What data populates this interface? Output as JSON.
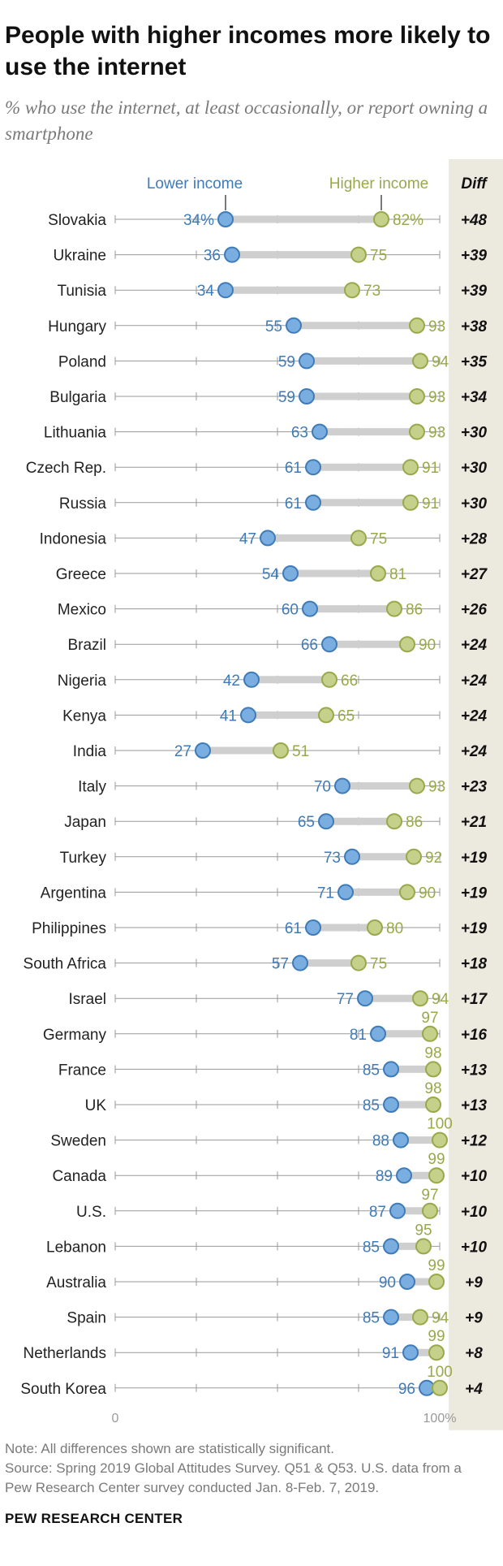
{
  "title": "People with higher incomes more likely to use the internet",
  "subtitle": "% who use the internet, at least occasionally, or report owning a smartphone",
  "note": "Note: All differences shown are statistically significant.",
  "source": "Source: Spring 2019 Global Attitudes Survey. Q51 & Q53. U.S. data from a Pew Research Center survey conducted Jan. 8-Feb. 7, 2019.",
  "org": "PEW RESEARCH CENTER",
  "colors": {
    "lower": "#3e7bb8",
    "lower_fill": "#7aaee0",
    "higher": "#9aa84a",
    "higher_fill": "#c5d08a",
    "connector": "#cfcfcf",
    "axis": "#9a9a9a",
    "diff_bg": "#ece9df"
  },
  "chart_data": {
    "type": "dot",
    "legend": {
      "lower": "Lower income",
      "higher": "Higher income",
      "diff": "Diff"
    },
    "xlim": [
      0,
      100
    ],
    "axis_labels": [
      "0",
      "100%"
    ],
    "series": [
      {
        "name": "Lower income",
        "key": "lower"
      },
      {
        "name": "Higher income",
        "key": "higher"
      }
    ],
    "rows": [
      {
        "country": "Slovakia",
        "lower": 34,
        "higher": 82,
        "lower_label": "34%",
        "higher_label": "82%",
        "diff": "+48"
      },
      {
        "country": "Ukraine",
        "lower": 36,
        "higher": 75,
        "lower_label": "36",
        "higher_label": "75",
        "diff": "+39"
      },
      {
        "country": "Tunisia",
        "lower": 34,
        "higher": 73,
        "lower_label": "34",
        "higher_label": "73",
        "diff": "+39"
      },
      {
        "country": "Hungary",
        "lower": 55,
        "higher": 93,
        "lower_label": "55",
        "higher_label": "93",
        "diff": "+38"
      },
      {
        "country": "Poland",
        "lower": 59,
        "higher": 94,
        "lower_label": "59",
        "higher_label": "94",
        "diff": "+35"
      },
      {
        "country": "Bulgaria",
        "lower": 59,
        "higher": 93,
        "lower_label": "59",
        "higher_label": "93",
        "diff": "+34"
      },
      {
        "country": "Lithuania",
        "lower": 63,
        "higher": 93,
        "lower_label": "63",
        "higher_label": "93",
        "diff": "+30"
      },
      {
        "country": "Czech Rep.",
        "lower": 61,
        "higher": 91,
        "lower_label": "61",
        "higher_label": "91",
        "diff": "+30"
      },
      {
        "country": "Russia",
        "lower": 61,
        "higher": 91,
        "lower_label": "61",
        "higher_label": "91",
        "diff": "+30"
      },
      {
        "country": "Indonesia",
        "lower": 47,
        "higher": 75,
        "lower_label": "47",
        "higher_label": "75",
        "diff": "+28"
      },
      {
        "country": "Greece",
        "lower": 54,
        "higher": 81,
        "lower_label": "54",
        "higher_label": "81",
        "diff": "+27"
      },
      {
        "country": "Mexico",
        "lower": 60,
        "higher": 86,
        "lower_label": "60",
        "higher_label": "86",
        "diff": "+26"
      },
      {
        "country": "Brazil",
        "lower": 66,
        "higher": 90,
        "lower_label": "66",
        "higher_label": "90",
        "diff": "+24"
      },
      {
        "country": "Nigeria",
        "lower": 42,
        "higher": 66,
        "lower_label": "42",
        "higher_label": "66",
        "diff": "+24"
      },
      {
        "country": "Kenya",
        "lower": 41,
        "higher": 65,
        "lower_label": "41",
        "higher_label": "65",
        "diff": "+24"
      },
      {
        "country": "India",
        "lower": 27,
        "higher": 51,
        "lower_label": "27",
        "higher_label": "51",
        "diff": "+24"
      },
      {
        "country": "Italy",
        "lower": 70,
        "higher": 93,
        "lower_label": "70",
        "higher_label": "93",
        "diff": "+23"
      },
      {
        "country": "Japan",
        "lower": 65,
        "higher": 86,
        "lower_label": "65",
        "higher_label": "86",
        "diff": "+21"
      },
      {
        "country": "Turkey",
        "lower": 73,
        "higher": 92,
        "lower_label": "73",
        "higher_label": "92",
        "diff": "+19"
      },
      {
        "country": "Argentina",
        "lower": 71,
        "higher": 90,
        "lower_label": "71",
        "higher_label": "90",
        "diff": "+19"
      },
      {
        "country": "Philippines",
        "lower": 61,
        "higher": 80,
        "lower_label": "61",
        "higher_label": "80",
        "diff": "+19"
      },
      {
        "country": "South Africa",
        "lower": 57,
        "higher": 75,
        "lower_label": "57",
        "higher_label": "75",
        "diff": "+18"
      },
      {
        "country": "Israel",
        "lower": 77,
        "higher": 94,
        "lower_label": "77",
        "higher_label": "94",
        "diff": "+17"
      },
      {
        "country": "Germany",
        "lower": 81,
        "higher": 97,
        "lower_label": "81",
        "higher_label": "97",
        "diff": "+16"
      },
      {
        "country": "France",
        "lower": 85,
        "higher": 98,
        "lower_label": "85",
        "higher_label": "98",
        "diff": "+13"
      },
      {
        "country": "UK",
        "lower": 85,
        "higher": 98,
        "lower_label": "85",
        "higher_label": "98",
        "diff": "+13"
      },
      {
        "country": "Sweden",
        "lower": 88,
        "higher": 100,
        "lower_label": "88",
        "higher_label": "100",
        "diff": "+12"
      },
      {
        "country": "Canada",
        "lower": 89,
        "higher": 99,
        "lower_label": "89",
        "higher_label": "99",
        "diff": "+10"
      },
      {
        "country": "U.S.",
        "lower": 87,
        "higher": 97,
        "lower_label": "87",
        "higher_label": "97",
        "diff": "+10"
      },
      {
        "country": "Lebanon",
        "lower": 85,
        "higher": 95,
        "lower_label": "85",
        "higher_label": "95",
        "diff": "+10"
      },
      {
        "country": "Australia",
        "lower": 90,
        "higher": 99,
        "lower_label": "90",
        "higher_label": "99",
        "diff": "+9"
      },
      {
        "country": "Spain",
        "lower": 85,
        "higher": 94,
        "lower_label": "85",
        "higher_label": "94",
        "diff": "+9"
      },
      {
        "country": "Netherlands",
        "lower": 91,
        "higher": 99,
        "lower_label": "91",
        "higher_label": "99",
        "diff": "+8"
      },
      {
        "country": "South Korea",
        "lower": 96,
        "higher": 100,
        "lower_label": "96",
        "higher_label": "100",
        "diff": "+4"
      }
    ]
  }
}
